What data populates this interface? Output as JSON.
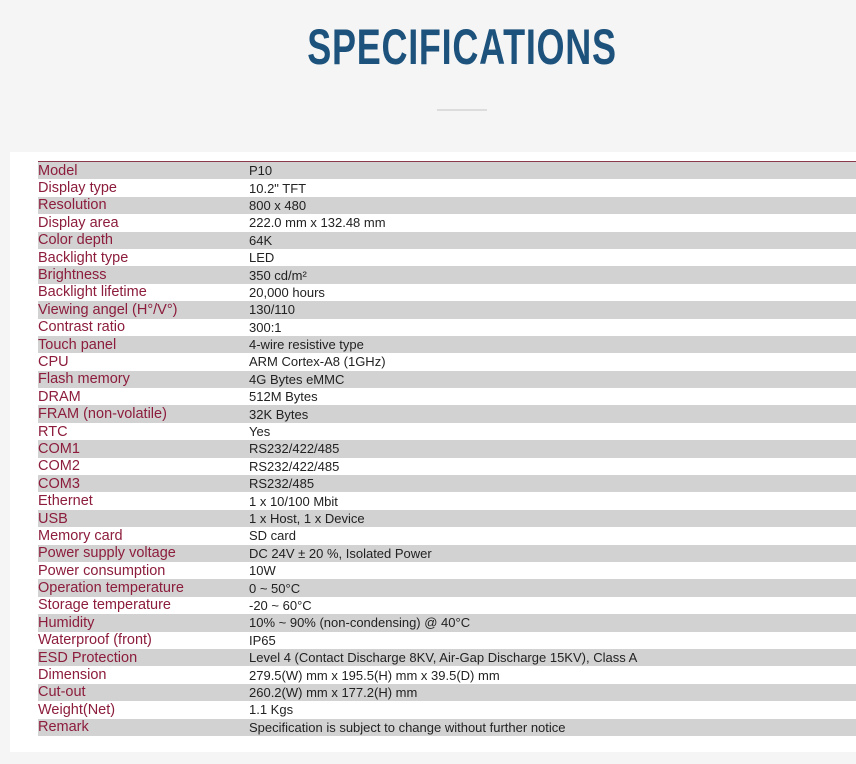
{
  "page": {
    "title": "SPECIFICATIONS"
  },
  "specs": [
    {
      "label": "Model",
      "value": "P10"
    },
    {
      "label": "Display type",
      "value": "10.2\" TFT"
    },
    {
      "label": "Resolution",
      "value": "800 x 480"
    },
    {
      "label": "Display area",
      "value": "222.0 mm x 132.48 mm"
    },
    {
      "label": "Color depth",
      "value": "64K"
    },
    {
      "label": "Backlight type",
      "value": "LED"
    },
    {
      "label": "Brightness",
      "value": "350 cd/m²"
    },
    {
      "label": "Backlight lifetime",
      "value": "20,000 hours"
    },
    {
      "label": "Viewing angel (H°/V°)",
      "value": "130/110"
    },
    {
      "label": "Contrast ratio",
      "value": "300:1"
    },
    {
      "label": "Touch panel",
      "value": "4-wire resistive type"
    },
    {
      "label": "CPU",
      "value": "ARM Cortex-A8 (1GHz)"
    },
    {
      "label": "Flash memory",
      "value": "4G Bytes eMMC"
    },
    {
      "label": "DRAM",
      "value": "512M Bytes"
    },
    {
      "label": "FRAM (non-volatile)",
      "value": "32K Bytes"
    },
    {
      "label": "RTC",
      "value": "Yes"
    },
    {
      "label": "COM1",
      "value": "RS232/422/485"
    },
    {
      "label": "COM2",
      "value": "RS232/422/485"
    },
    {
      "label": "COM3",
      "value": "RS232/485"
    },
    {
      "label": "Ethernet",
      "value": "1 x 10/100 Mbit"
    },
    {
      "label": "USB",
      "value": "1 x Host, 1 x Device"
    },
    {
      "label": "Memory card",
      "value": "SD card"
    },
    {
      "label": "Power supply voltage",
      "value": "DC 24V ± 20 %, Isolated Power"
    },
    {
      "label": "Power consumption",
      "value": "10W"
    },
    {
      "label": "Operation temperature",
      "value": "0 ~ 50°C"
    },
    {
      "label": "Storage temperature",
      "value": "-20 ~ 60°C"
    },
    {
      "label": "Humidity",
      "value": "10% ~ 90% (non-condensing) @ 40°C"
    },
    {
      "label": "Waterproof (front)",
      "value": "IP65"
    },
    {
      "label": "ESD Protection",
      "value": "Level 4 (Contact Discharge 8KV, Air-Gap Discharge 15KV), Class A"
    },
    {
      "label": "Dimension",
      "value": "279.5(W) mm x 195.5(H) mm x 39.5(D) mm"
    },
    {
      "label": "Cut-out",
      "value": "260.2(W) mm x 177.2(H) mm"
    },
    {
      "label": "Weight(Net)",
      "value": "1.1 Kgs"
    },
    {
      "label": "Remark",
      "value": "Specification is subject to change without further notice"
    }
  ],
  "colors": {
    "title": "#1d527c",
    "label": "#8c1d3c",
    "stripe": "#d2d2d2"
  }
}
